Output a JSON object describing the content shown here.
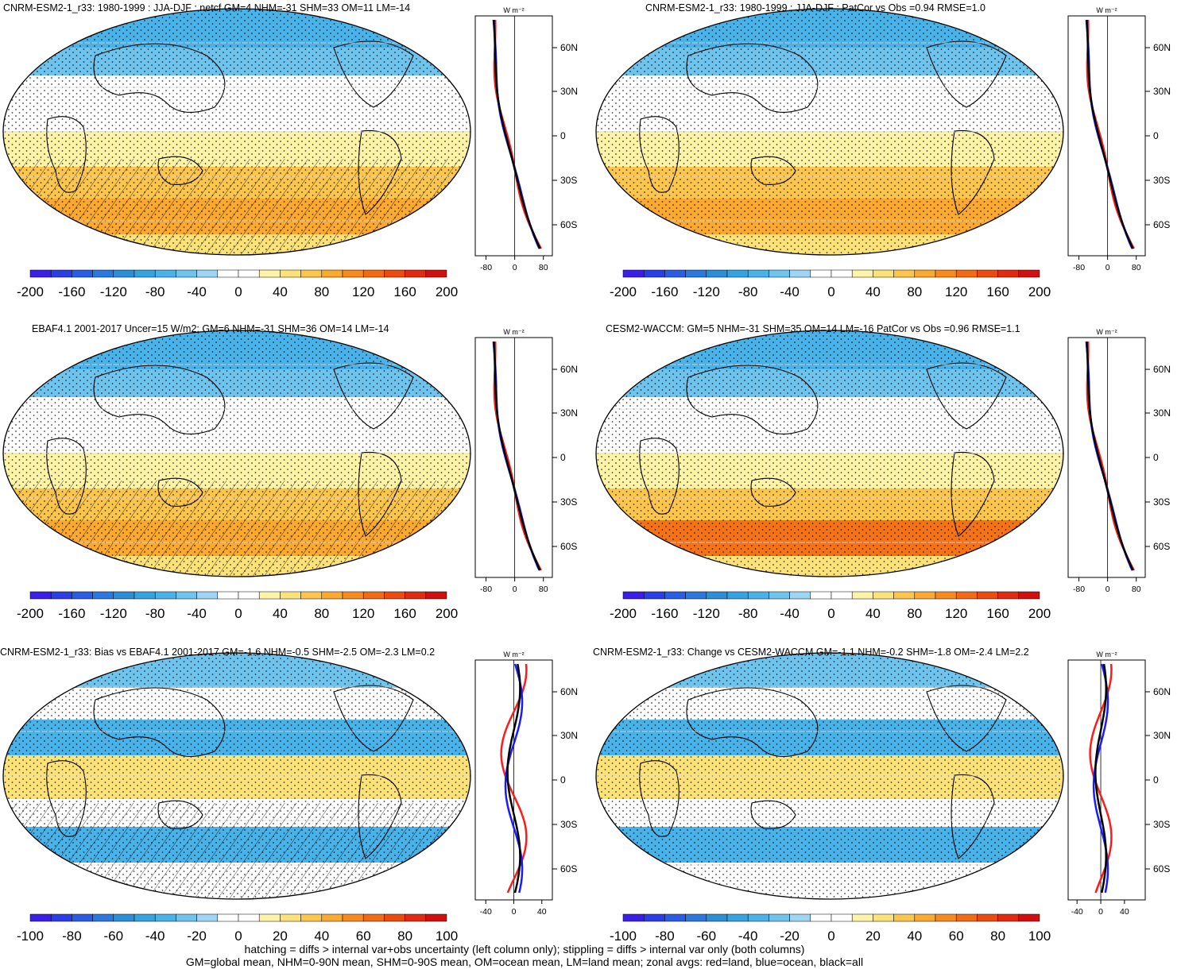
{
  "colors": {
    "ocean_land_bg": "#ffffff",
    "blue_line": "#1a1aff",
    "red_line": "#ff1a1a",
    "black_line": "#000000"
  },
  "colorbars": {
    "wide": {
      "colors": [
        "#3b1fe8",
        "#2b3ee6",
        "#2a5de4",
        "#2b78de",
        "#2b8fd8",
        "#35a3e0",
        "#49b2e8",
        "#6fc4ee",
        "#9ed5f4",
        "#ffffff",
        "#ffffff",
        "#fff3a8",
        "#fde27a",
        "#fcc64e",
        "#fba930",
        "#f88a1d",
        "#f36a14",
        "#ec4b10",
        "#e22a10",
        "#d20f0f"
      ],
      "labels": [
        "-200",
        "-160",
        "-120",
        "-80",
        "-40",
        "0",
        "40",
        "80",
        "120",
        "160",
        "200"
      ]
    },
    "narrow": {
      "colors": [
        "#3b1fe8",
        "#2b3ee6",
        "#2a5de4",
        "#2b78de",
        "#2b8fd8",
        "#35a3e0",
        "#49b2e8",
        "#6fc4ee",
        "#9ed5f4",
        "#ffffff",
        "#ffffff",
        "#fff3a8",
        "#fde27a",
        "#fcc64e",
        "#fba930",
        "#f88a1d",
        "#f36a14",
        "#ec4b10",
        "#e22a10",
        "#d20f0f"
      ],
      "labels": [
        "-100",
        "-80",
        "-60",
        "-40",
        "-20",
        "0",
        "20",
        "40",
        "60",
        "80",
        "100"
      ]
    }
  },
  "panels": [
    {
      "title": "CNRM-ESM2-1_r33: 1980-1999 : JJA-DJF : netcf GM=4 NHM=-31 SHM=33 OM=11 LM=-14",
      "hatch": true,
      "colorbar": "wide",
      "zonal": {
        "units": "W m⁻²",
        "lat_labels": [
          "60N",
          "30N",
          "0",
          "30S",
          "60S"
        ],
        "x_ticks": [
          "-80",
          "0",
          "80"
        ],
        "xlim": [
          -110,
          105
        ]
      }
    },
    {
      "title": "CNRM-ESM2-1_r33: 1980-1999 : JJA-DJF : PatCor vs Obs =0.94 RMSE=1.0",
      "hatch": false,
      "colorbar": "wide",
      "zonal": {
        "units": "W m⁻²",
        "lat_labels": [
          "60N",
          "30N",
          "0",
          "30S",
          "60S"
        ],
        "x_ticks": [
          "-80",
          "0",
          "80"
        ],
        "xlim": [
          -110,
          105
        ]
      }
    },
    {
      "title": "EBAF4.1 2001-2017 Uncer=15 W/m2: GM=6 NHM=-31 SHM=36 OM=14 LM=-14",
      "hatch": true,
      "colorbar": "wide",
      "zonal": {
        "units": "W m⁻²",
        "lat_labels": [
          "60N",
          "30N",
          "0",
          "30S",
          "60S"
        ],
        "x_ticks": [
          "-80",
          "0",
          "80"
        ],
        "xlim": [
          -110,
          105
        ]
      }
    },
    {
      "title": "CESM2-WACCM: GM=5 NHM=-31 SHM=35 OM=14 LM=-16 PatCor vs Obs =0.96 RMSE=1.1",
      "hatch": false,
      "colorbar": "wide",
      "zonal": {
        "units": "W m⁻²",
        "lat_labels": [
          "60N",
          "30N",
          "0",
          "30S",
          "60S"
        ],
        "x_ticks": [
          "-80",
          "0",
          "80"
        ],
        "xlim": [
          -110,
          105
        ]
      }
    },
    {
      "title": "CNRM-ESM2-1_r33: Bias vs EBAF4.1 2001-2017 GM=-1.6 NHM=-0.5 SHM=-2.5 OM=-2.3 LM=0.2",
      "hatch": true,
      "colorbar": "narrow",
      "zonal": {
        "units": "W m⁻²",
        "lat_labels": [
          "60N",
          "30N",
          "0",
          "30S",
          "60S"
        ],
        "x_ticks": [
          "-40",
          "0",
          "40"
        ],
        "xlim": [
          -55,
          55
        ]
      }
    },
    {
      "title": "CNRM-ESM2-1_r33: Change vs CESM2-WACCM GM=-1.1 NHM=-0.2 SHM=-1.8 OM=-2.4 LM=2.2",
      "hatch": false,
      "colorbar": "narrow",
      "zonal": {
        "units": "W m⁻²",
        "lat_labels": [
          "60N",
          "30N",
          "0",
          "30S",
          "60S"
        ],
        "x_ticks": [
          "-40",
          "0",
          "40"
        ],
        "xlim": [
          -55,
          75
        ]
      }
    }
  ],
  "footer": {
    "line1": "hatching = diffs > internal var+obs uncertainty (left column only); stippling = diffs > internal var only (both columns)",
    "line2": "GM=global mean, NHM=0-90N mean, SHM=0-90S mean, OM=ocean mean, LM=land mean; zonal avgs: red=land, blue=ocean, black=all"
  }
}
